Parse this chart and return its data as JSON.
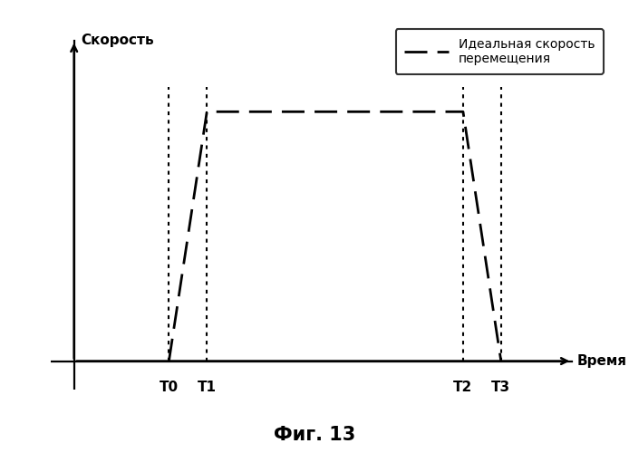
{
  "title": "Фиг. 13",
  "ylabel": "Скорость",
  "xlabel": "Время",
  "legend_label": "Идеальная скорость\nперемещения",
  "background_color": "#ffffff",
  "T0": 2.0,
  "T1": 2.8,
  "T2": 8.2,
  "T3": 9.0,
  "v_max": 7.0,
  "x_min": -0.5,
  "x_max": 10.5,
  "y_min": -0.8,
  "y_max": 9.5,
  "axis_color": "#000000",
  "dotted_color": "#000000",
  "dashed_color": "#000000"
}
